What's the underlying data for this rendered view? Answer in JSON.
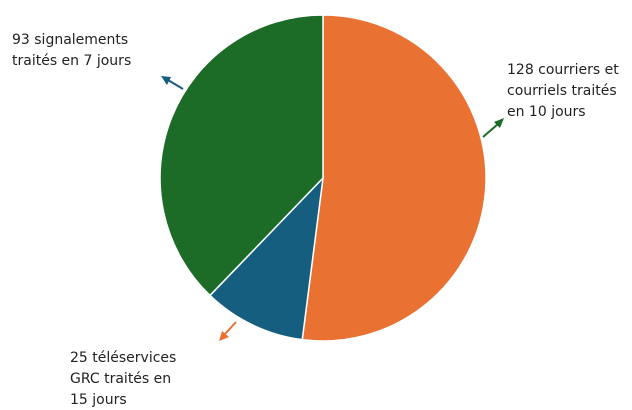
{
  "chart_data": {
    "type": "pie",
    "categories": [
      [
        "128 courriers et",
        "courriels traités",
        "en 10 jours"
      ],
      [
        "25 téléservices",
        "GRC traités en",
        "15 jours"
      ],
      [
        "93 signalements",
        "traités en 7 jours"
      ]
    ],
    "values": [
      128,
      25,
      93
    ],
    "colors": [
      "#e97132",
      "#155e80",
      "#1c6b27"
    ]
  }
}
